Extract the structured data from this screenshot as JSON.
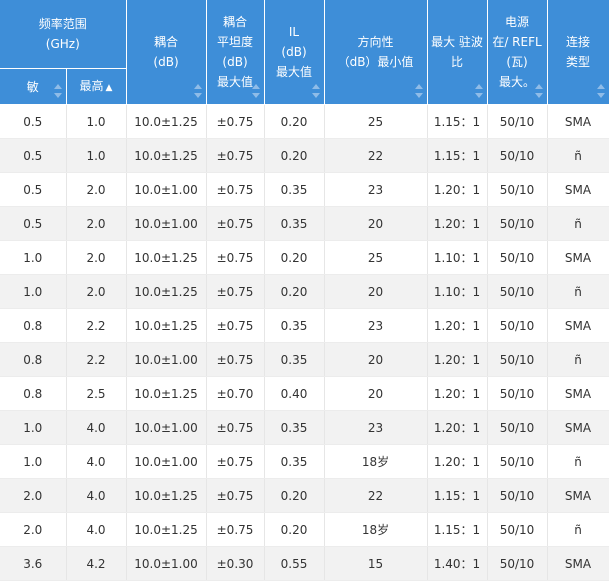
{
  "header": {
    "freq_range": "频率范围",
    "freq_unit": "(GHz)",
    "min": "敏",
    "max": "最高",
    "coupling": "耦合",
    "coupling_unit": "(dB)",
    "flatness_1": "耦合",
    "flatness_2": "平坦度",
    "flatness_3": "(dB)",
    "flatness_4": "最大值",
    "il_1": "IL",
    "il_2": "(dB)",
    "il_3": "最大值",
    "dir_1": "方向性",
    "dir_2": "（dB）最小值",
    "vswr_1": "最大 驻波",
    "vswr_2": "比",
    "power_1": "电源",
    "power_2": "在/ REFL",
    "power_3": "(瓦)",
    "power_4": "最大。",
    "conn_1": "连接",
    "conn_2": "类型",
    "active_sort": "▲"
  },
  "rows": [
    {
      "min": "0.5",
      "max": "1.0",
      "coup": "10.0±1.25",
      "flat": "±0.75",
      "il": "0.20",
      "dir": "25",
      "vswr": "1.15：1",
      "power": "50/10",
      "conn": "SMA"
    },
    {
      "min": "0.5",
      "max": "1.0",
      "coup": "10.0±1.25",
      "flat": "±0.75",
      "il": "0.20",
      "dir": "22",
      "vswr": "1.15：1",
      "power": "50/10",
      "conn": "ñ"
    },
    {
      "min": "0.5",
      "max": "2.0",
      "coup": "10.0±1.00",
      "flat": "±0.75",
      "il": "0.35",
      "dir": "23",
      "vswr": "1.20：1",
      "power": "50/10",
      "conn": "SMA"
    },
    {
      "min": "0.5",
      "max": "2.0",
      "coup": "10.0±1.00",
      "flat": "±0.75",
      "il": "0.35",
      "dir": "20",
      "vswr": "1.20：1",
      "power": "50/10",
      "conn": "ñ"
    },
    {
      "min": "1.0",
      "max": "2.0",
      "coup": "10.0±1.25",
      "flat": "±0.75",
      "il": "0.20",
      "dir": "25",
      "vswr": "1.10：1",
      "power": "50/10",
      "conn": "SMA"
    },
    {
      "min": "1.0",
      "max": "2.0",
      "coup": "10.0±1.25",
      "flat": "±0.75",
      "il": "0.20",
      "dir": "20",
      "vswr": "1.10：1",
      "power": "50/10",
      "conn": "ñ"
    },
    {
      "min": "0.8",
      "max": "2.2",
      "coup": "10.0±1.25",
      "flat": "±0.75",
      "il": "0.35",
      "dir": "23",
      "vswr": "1.20：1",
      "power": "50/10",
      "conn": "SMA"
    },
    {
      "min": "0.8",
      "max": "2.2",
      "coup": "10.0±1.00",
      "flat": "±0.75",
      "il": "0.35",
      "dir": "20",
      "vswr": "1.20：1",
      "power": "50/10",
      "conn": "ñ"
    },
    {
      "min": "0.8",
      "max": "2.5",
      "coup": "10.0±1.25",
      "flat": "±0.70",
      "il": "0.40",
      "dir": "20",
      "vswr": "1.20：1",
      "power": "50/10",
      "conn": "SMA"
    },
    {
      "min": "1.0",
      "max": "4.0",
      "coup": "10.0±1.00",
      "flat": "±0.75",
      "il": "0.35",
      "dir": "23",
      "vswr": "1.20：1",
      "power": "50/10",
      "conn": "SMA"
    },
    {
      "min": "1.0",
      "max": "4.0",
      "coup": "10.0±1.00",
      "flat": "±0.75",
      "il": "0.35",
      "dir": "18岁",
      "vswr": "1.20：1",
      "power": "50/10",
      "conn": "ñ"
    },
    {
      "min": "2.0",
      "max": "4.0",
      "coup": "10.0±1.25",
      "flat": "±0.75",
      "il": "0.20",
      "dir": "22",
      "vswr": "1.15：1",
      "power": "50/10",
      "conn": "SMA"
    },
    {
      "min": "2.0",
      "max": "4.0",
      "coup": "10.0±1.25",
      "flat": "±0.75",
      "il": "0.20",
      "dir": "18岁",
      "vswr": "1.15：1",
      "power": "50/10",
      "conn": "ñ"
    },
    {
      "min": "3.6",
      "max": "4.2",
      "coup": "10.0±1.00",
      "flat": "±0.30",
      "il": "0.55",
      "dir": "15",
      "vswr": "1.40：1",
      "power": "50/10",
      "conn": "SMA"
    }
  ]
}
